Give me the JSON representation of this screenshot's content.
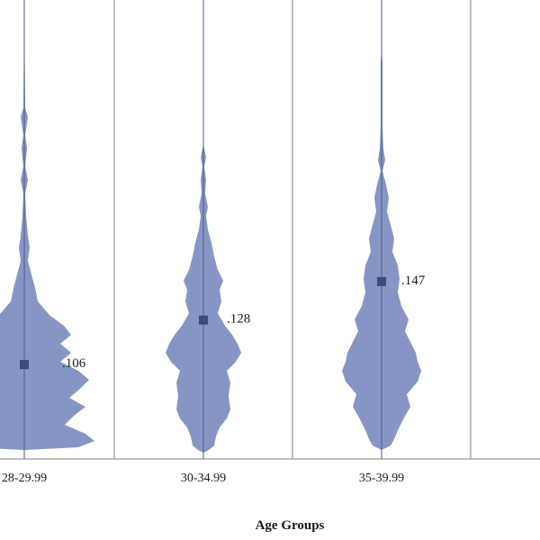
{
  "chart_data": {
    "type": "violin",
    "xlabel": "Age Groups",
    "ylabel": "",
    "categories": [
      "28-29.99",
      "30-34.99",
      "35-39.99"
    ],
    "values": [
      0.106,
      0.128,
      0.147
    ],
    "value_labels": [
      ".106",
      ".128",
      ".147"
    ],
    "colors": {
      "violin_fill": "#8795c4",
      "mean_marker": "#3c4a78",
      "center_line": "#4b5a8c",
      "divider": "#808080"
    },
    "grid": false
  }
}
